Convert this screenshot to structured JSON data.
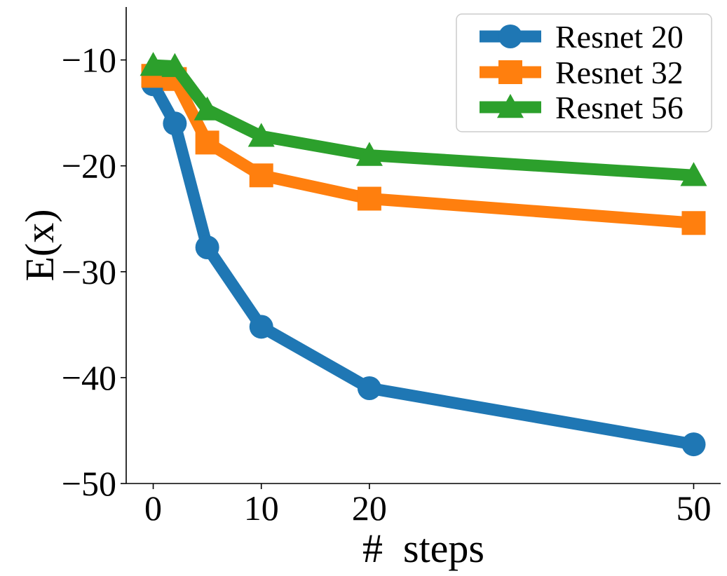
{
  "chart_data": {
    "type": "line",
    "title": "",
    "xlabel": "#  steps",
    "ylabel": "E(x)",
    "xlim": [
      -2.5,
      52.5
    ],
    "ylim": [
      -50,
      -5
    ],
    "xticks": [
      0,
      10,
      20,
      50
    ],
    "xtick_labels": [
      "0",
      "10",
      "20",
      "50"
    ],
    "yticks": [
      -10,
      -20,
      -30,
      -40,
      -50
    ],
    "ytick_labels": [
      "−10",
      "−20",
      "−30",
      "−40",
      "−50"
    ],
    "grid": false,
    "legend_position": "top-right",
    "x": [
      0,
      2,
      5,
      10,
      20,
      50
    ],
    "series": [
      {
        "name": "Resnet 20",
        "color": "#1f77b4",
        "marker": "circle",
        "values": [
          -12.3,
          -16.0,
          -27.7,
          -35.2,
          -41.0,
          -46.3
        ]
      },
      {
        "name": "Resnet 32",
        "color": "#ff7f0e",
        "marker": "square",
        "values": [
          -11.5,
          -11.8,
          -17.8,
          -20.9,
          -23.1,
          -25.4
        ]
      },
      {
        "name": "Resnet 56",
        "color": "#2ca02c",
        "marker": "triangle",
        "values": [
          -10.5,
          -10.6,
          -14.7,
          -17.2,
          -19.0,
          -20.9
        ]
      }
    ]
  }
}
